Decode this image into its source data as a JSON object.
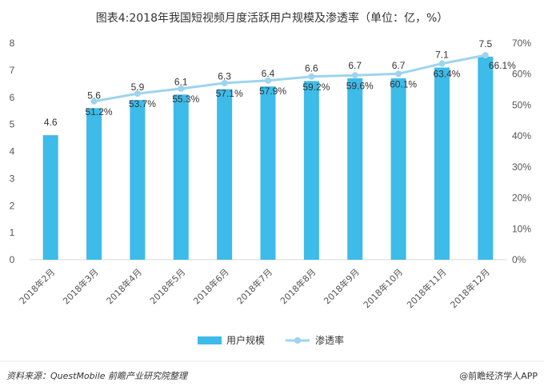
{
  "title": "图表4:2018年我国短视频月度活跃用户规模及渗透率（单位：亿，%）",
  "chart_data": {
    "type": "bar",
    "categories": [
      "2018年2月",
      "2018年3月",
      "2018年4月",
      "2018年5月",
      "2018年6月",
      "2018年7月",
      "2018年8月",
      "2018年9月",
      "2018年10月",
      "2018年11月",
      "2018年12月"
    ],
    "series": [
      {
        "name": "用户规模",
        "type": "bar",
        "axis": "left",
        "values": [
          4.6,
          5.6,
          5.9,
          6.1,
          6.3,
          6.4,
          6.6,
          6.7,
          6.7,
          7.1,
          7.5
        ],
        "color": "#3dbbe9"
      },
      {
        "name": "渗透率",
        "type": "line",
        "axis": "right",
        "values": [
          null,
          51.2,
          53.7,
          55.3,
          57.1,
          57.9,
          59.2,
          59.6,
          60.1,
          63.4,
          66.1
        ],
        "labels": [
          "",
          "51.2%",
          "53.7%",
          "55.3%",
          "57.1%",
          "57.9%",
          "59.2%",
          "59.6%",
          "60.1%",
          "63.4%",
          "66.1%"
        ],
        "color": "#9dd4ef"
      }
    ],
    "y_left": {
      "ticks": [
        "0",
        "1",
        "2",
        "3",
        "4",
        "5",
        "6",
        "7",
        "8"
      ],
      "ylim": [
        0,
        8
      ]
    },
    "y_right": {
      "ticks": [
        "0%",
        "10%",
        "20%",
        "30%",
        "40%",
        "50%",
        "60%",
        "70%"
      ],
      "ylim": [
        0,
        70
      ]
    },
    "grid": false,
    "legend": "bottom-center"
  },
  "legend": {
    "bar_label": "用户规模",
    "line_label": "渗透率"
  },
  "footer": {
    "source_label": "资料来源：",
    "source_text": "QuestMobile  前瞻产业研究院整理",
    "brand": "@前瞻经济学人APP"
  }
}
